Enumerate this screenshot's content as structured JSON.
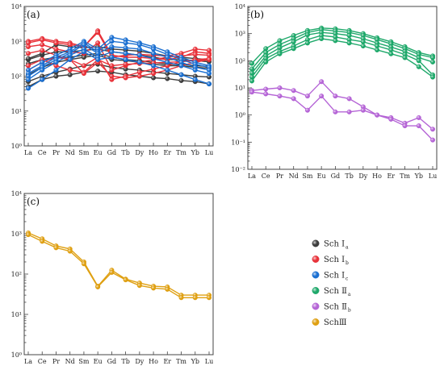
{
  "chart_data": [
    {
      "type": "line",
      "label": "(a)",
      "yscale": "log",
      "ylim": [
        1,
        10000
      ],
      "y_ticks": [
        1,
        10,
        100,
        1000,
        10000
      ],
      "y_tick_labels": [
        "10⁰",
        "10¹",
        "10²",
        "10³",
        "10⁴"
      ],
      "categories": [
        "La",
        "Ce",
        "Pr",
        "Nd",
        "Sm",
        "Eu",
        "Gd",
        "Tb",
        "Dy",
        "Ho",
        "Er",
        "Tm",
        "Yb",
        "Lu"
      ],
      "groups": [
        {
          "color": "#3d3d3d",
          "series": [
            [
              300,
              400,
              500,
              500,
              550,
              600,
              500,
              450,
              400,
              350,
              300,
              300,
              280,
              260
            ],
            [
              230,
              300,
              350,
              350,
              400,
              450,
              350,
              300,
              280,
              250,
              220,
              220,
              200,
              190
            ],
            [
              110,
              180,
              250,
              300,
              350,
              400,
              300,
              280,
              250,
              220,
              200,
              200,
              180,
              170
            ],
            [
              70,
              100,
              130,
              160,
              200,
              220,
              180,
              160,
              150,
              130,
              120,
              110,
              100,
              95
            ],
            [
              50,
              80,
              100,
              110,
              130,
              140,
              130,
              110,
              100,
              90,
              85,
              75,
              70,
              60
            ],
            [
              320,
              450,
              800,
              700,
              650,
              700,
              600,
              560,
              520,
              450,
              380,
              350,
              320,
              300
            ]
          ]
        },
        {
          "color": "#e8323a",
          "series": [
            [
              1000,
              1200,
              1000,
              900,
              700,
              2000,
              400,
              350,
              350,
              320,
              300,
              350,
              500,
              450
            ],
            [
              900,
              1100,
              900,
              800,
              700,
              1800,
              350,
              400,
              420,
              400,
              380,
              450,
              600,
              550
            ],
            [
              700,
              800,
              600,
              500,
              450,
              900,
              150,
              200,
              250,
              300,
              350,
              380,
              420,
              400
            ],
            [
              450,
              550,
              400,
              300,
              200,
              350,
              80,
              100,
              130,
              160,
              200,
              260,
              300,
              320
            ],
            [
              200,
              300,
              200,
              150,
              130,
              300,
              200,
              220,
              230,
              240,
              250,
              260,
              280,
              300
            ],
            [
              150,
              250,
              350,
              300,
              120,
              250,
              100,
              90,
              100,
              120,
              150,
              200,
              250,
              300
            ]
          ]
        },
        {
          "color": "#1a6fd1",
          "series": [
            [
              150,
              250,
              400,
              600,
              1000,
              600,
              1300,
              1100,
              900,
              700,
              500,
              350,
              250,
              200
            ],
            [
              120,
              200,
              350,
              500,
              900,
              500,
              1000,
              900,
              800,
              600,
              420,
              300,
              220,
              180
            ],
            [
              100,
              180,
              300,
              450,
              800,
              450,
              700,
              650,
              600,
              450,
              350,
              250,
              180,
              150
            ],
            [
              80,
              150,
              250,
              400,
              600,
              350,
              500,
              450,
              400,
              320,
              250,
              200,
              150,
              120
            ],
            [
              45,
              80,
              150,
              300,
              500,
              300,
              350,
              300,
              250,
              200,
              150,
              110,
              80,
              60
            ]
          ]
        }
      ]
    },
    {
      "type": "line",
      "label": "(b)",
      "yscale": "log",
      "ylim": [
        0.01,
        10000
      ],
      "y_ticks": [
        0.01,
        0.1,
        1,
        10,
        100,
        1000,
        10000
      ],
      "y_tick_labels": [
        "10⁻²",
        "10⁻¹",
        "10⁰",
        "10¹",
        "10²",
        "10³",
        "10⁴"
      ],
      "categories": [
        "La",
        "Ce",
        "Pr",
        "Nd",
        "Sm",
        "Eu",
        "Gd",
        "Tb",
        "Dy",
        "Ho",
        "Er",
        "Tm",
        "Yb",
        "Lu"
      ],
      "groups": [
        {
          "color": "#1ea86a",
          "series": [
            [
              80,
              280,
              550,
              850,
              1300,
              1600,
              1500,
              1300,
              1000,
              700,
              500,
              330,
              200,
              150
            ],
            [
              50,
              200,
              400,
              650,
              1100,
              1400,
              1250,
              1100,
              850,
              600,
              420,
              280,
              170,
              130
            ],
            [
              35,
              150,
              300,
              500,
              900,
              1100,
              1000,
              850,
              650,
              450,
              320,
              220,
              130,
              90
            ],
            [
              25,
              120,
              220,
              350,
              600,
              850,
              750,
              600,
              500,
              350,
              250,
              170,
              100,
              30
            ],
            [
              18,
              90,
              180,
              280,
              450,
              650,
              550,
              450,
              350,
              250,
              180,
              130,
              60,
              25
            ]
          ]
        },
        {
          "color": "#b565d6",
          "series": [
            [
              8,
              9,
              10,
              8,
              5,
              17,
              5,
              4,
              2,
              1,
              0.8,
              0.5,
              0.8,
              0.3
            ],
            [
              7,
              6,
              5,
              4,
              1.5,
              5,
              1.3,
              1.3,
              1.5,
              1,
              0.7,
              0.4,
              0.4,
              0.12
            ]
          ]
        }
      ]
    },
    {
      "type": "line",
      "label": "(c)",
      "yscale": "log",
      "ylim": [
        1,
        10000
      ],
      "y_ticks": [
        1,
        10,
        100,
        1000,
        10000
      ],
      "y_tick_labels": [
        "10⁰",
        "10¹",
        "10²",
        "10³",
        "10⁴"
      ],
      "categories": [
        "La",
        "Ce",
        "Pr",
        "Nd",
        "Sm",
        "Eu",
        "Gd",
        "Tb",
        "Dy",
        "Ho",
        "Er",
        "Tm",
        "Yb",
        "Lu"
      ],
      "groups": [
        {
          "color": "#dfa012",
          "series": [
            [
              1050,
              750,
              500,
              420,
              200,
              50,
              125,
              75,
              60,
              50,
              48,
              30,
              30,
              30
            ],
            [
              950,
              650,
              450,
              370,
              180,
              48,
              110,
              72,
              52,
              45,
              42,
              26,
              26,
              26
            ]
          ]
        }
      ]
    }
  ],
  "legend": [
    {
      "text": "Sch Ⅰ",
      "sub": "a",
      "color": "#3d3d3d"
    },
    {
      "text": "Sch Ⅰ",
      "sub": "b",
      "color": "#e8323a"
    },
    {
      "text": "Sch Ⅰ",
      "sub": "c",
      "color": "#1a6fd1"
    },
    {
      "text": "Sch Ⅱ",
      "sub": "a",
      "color": "#1ea86a"
    },
    {
      "text": "Sch Ⅱ",
      "sub": "b",
      "color": "#b565d6"
    },
    {
      "text": "SchⅢ",
      "sub": "",
      "color": "#dfa012"
    }
  ]
}
